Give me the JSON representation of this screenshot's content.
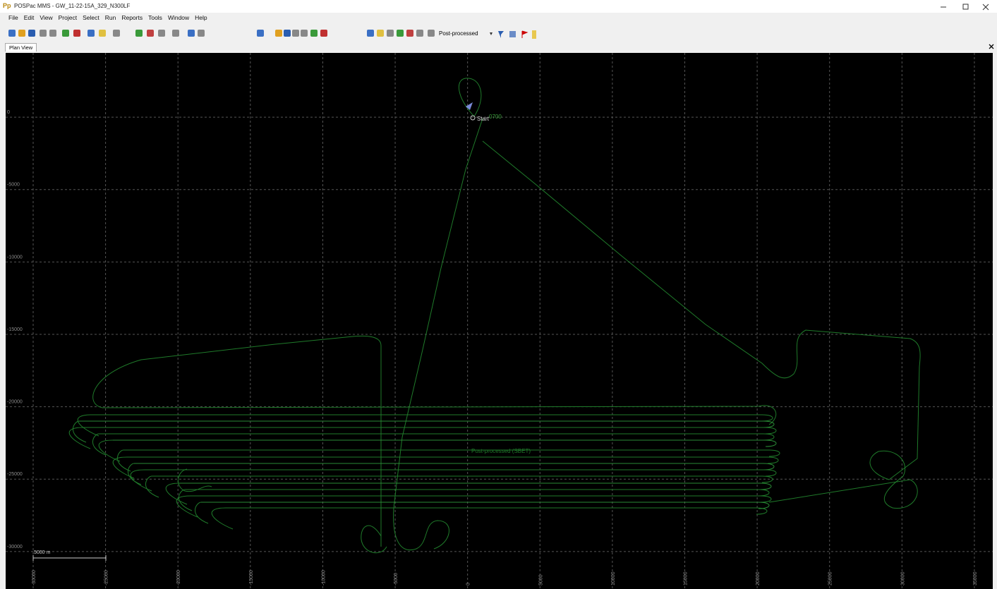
{
  "window": {
    "app_icon": "Pp",
    "title": "POSPac MMS - GW_11-22-15A_329_N300LF"
  },
  "menu": [
    "File",
    "Edit",
    "View",
    "Project",
    "Select",
    "Run",
    "Reports",
    "Tools",
    "Window",
    "Help"
  ],
  "toolbar": {
    "mode": "Post-processed"
  },
  "tabs": [
    "Plan View"
  ],
  "plan_view": {
    "xlim": [
      -31900,
      36270
    ],
    "ylim": [
      -32590,
      4440
    ],
    "xticks": [
      -30000,
      -25000,
      -20000,
      -15000,
      -10000,
      -5000,
      0,
      5000,
      10000,
      15000,
      20000,
      25000,
      30000,
      35000
    ],
    "yticks": [
      0,
      -5000,
      -10000,
      -15000,
      -20000,
      -25000,
      -30000
    ],
    "grid": true,
    "labels": {
      "start": "Start",
      "line": "0700",
      "trajectory": "Post-processed (SBET)",
      "scale": "5000 m"
    }
  }
}
